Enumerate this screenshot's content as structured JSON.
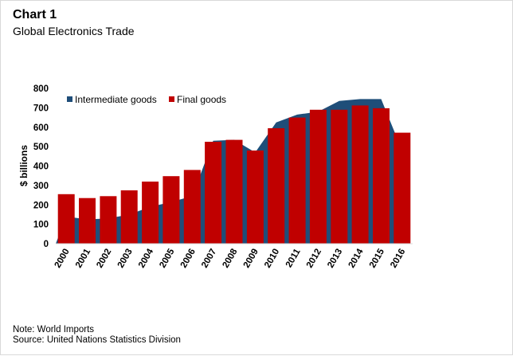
{
  "header": {
    "title": "Chart 1",
    "subtitle": "Global Electronics Trade"
  },
  "notes": {
    "note": "Note: World Imports",
    "source": "Source: United Nations Statistics Division"
  },
  "colors": {
    "intermediate": "#1f4e79",
    "final": "#c00000"
  },
  "chart_data": {
    "type": "bar",
    "title": "Chart 1",
    "subtitle": "Global Electronics Trade",
    "xlabel": "",
    "ylabel": "$ billions",
    "ylim": [
      0,
      800
    ],
    "yticks": [
      0,
      100,
      200,
      300,
      400,
      500,
      600,
      700,
      800
    ],
    "grid": false,
    "legend_position": "top-left",
    "categories": [
      "2000",
      "2001",
      "2002",
      "2003",
      "2004",
      "2005",
      "2006",
      "2007",
      "2008",
      "2009",
      "2010",
      "2011",
      "2012",
      "2013",
      "2014",
      "2015",
      "2016"
    ],
    "series": [
      {
        "name": "Intermediate goods",
        "render": "area",
        "color": "#1f4e79",
        "values": [
          140,
          125,
          130,
          150,
          190,
          215,
          245,
          530,
          535,
          470,
          625,
          665,
          680,
          735,
          745,
          745,
          480
        ]
      },
      {
        "name": "Final goods",
        "render": "bar",
        "color": "#c00000",
        "values": [
          255,
          235,
          245,
          275,
          320,
          348,
          380,
          525,
          535,
          480,
          595,
          650,
          690,
          690,
          712,
          698,
          572
        ]
      }
    ]
  }
}
